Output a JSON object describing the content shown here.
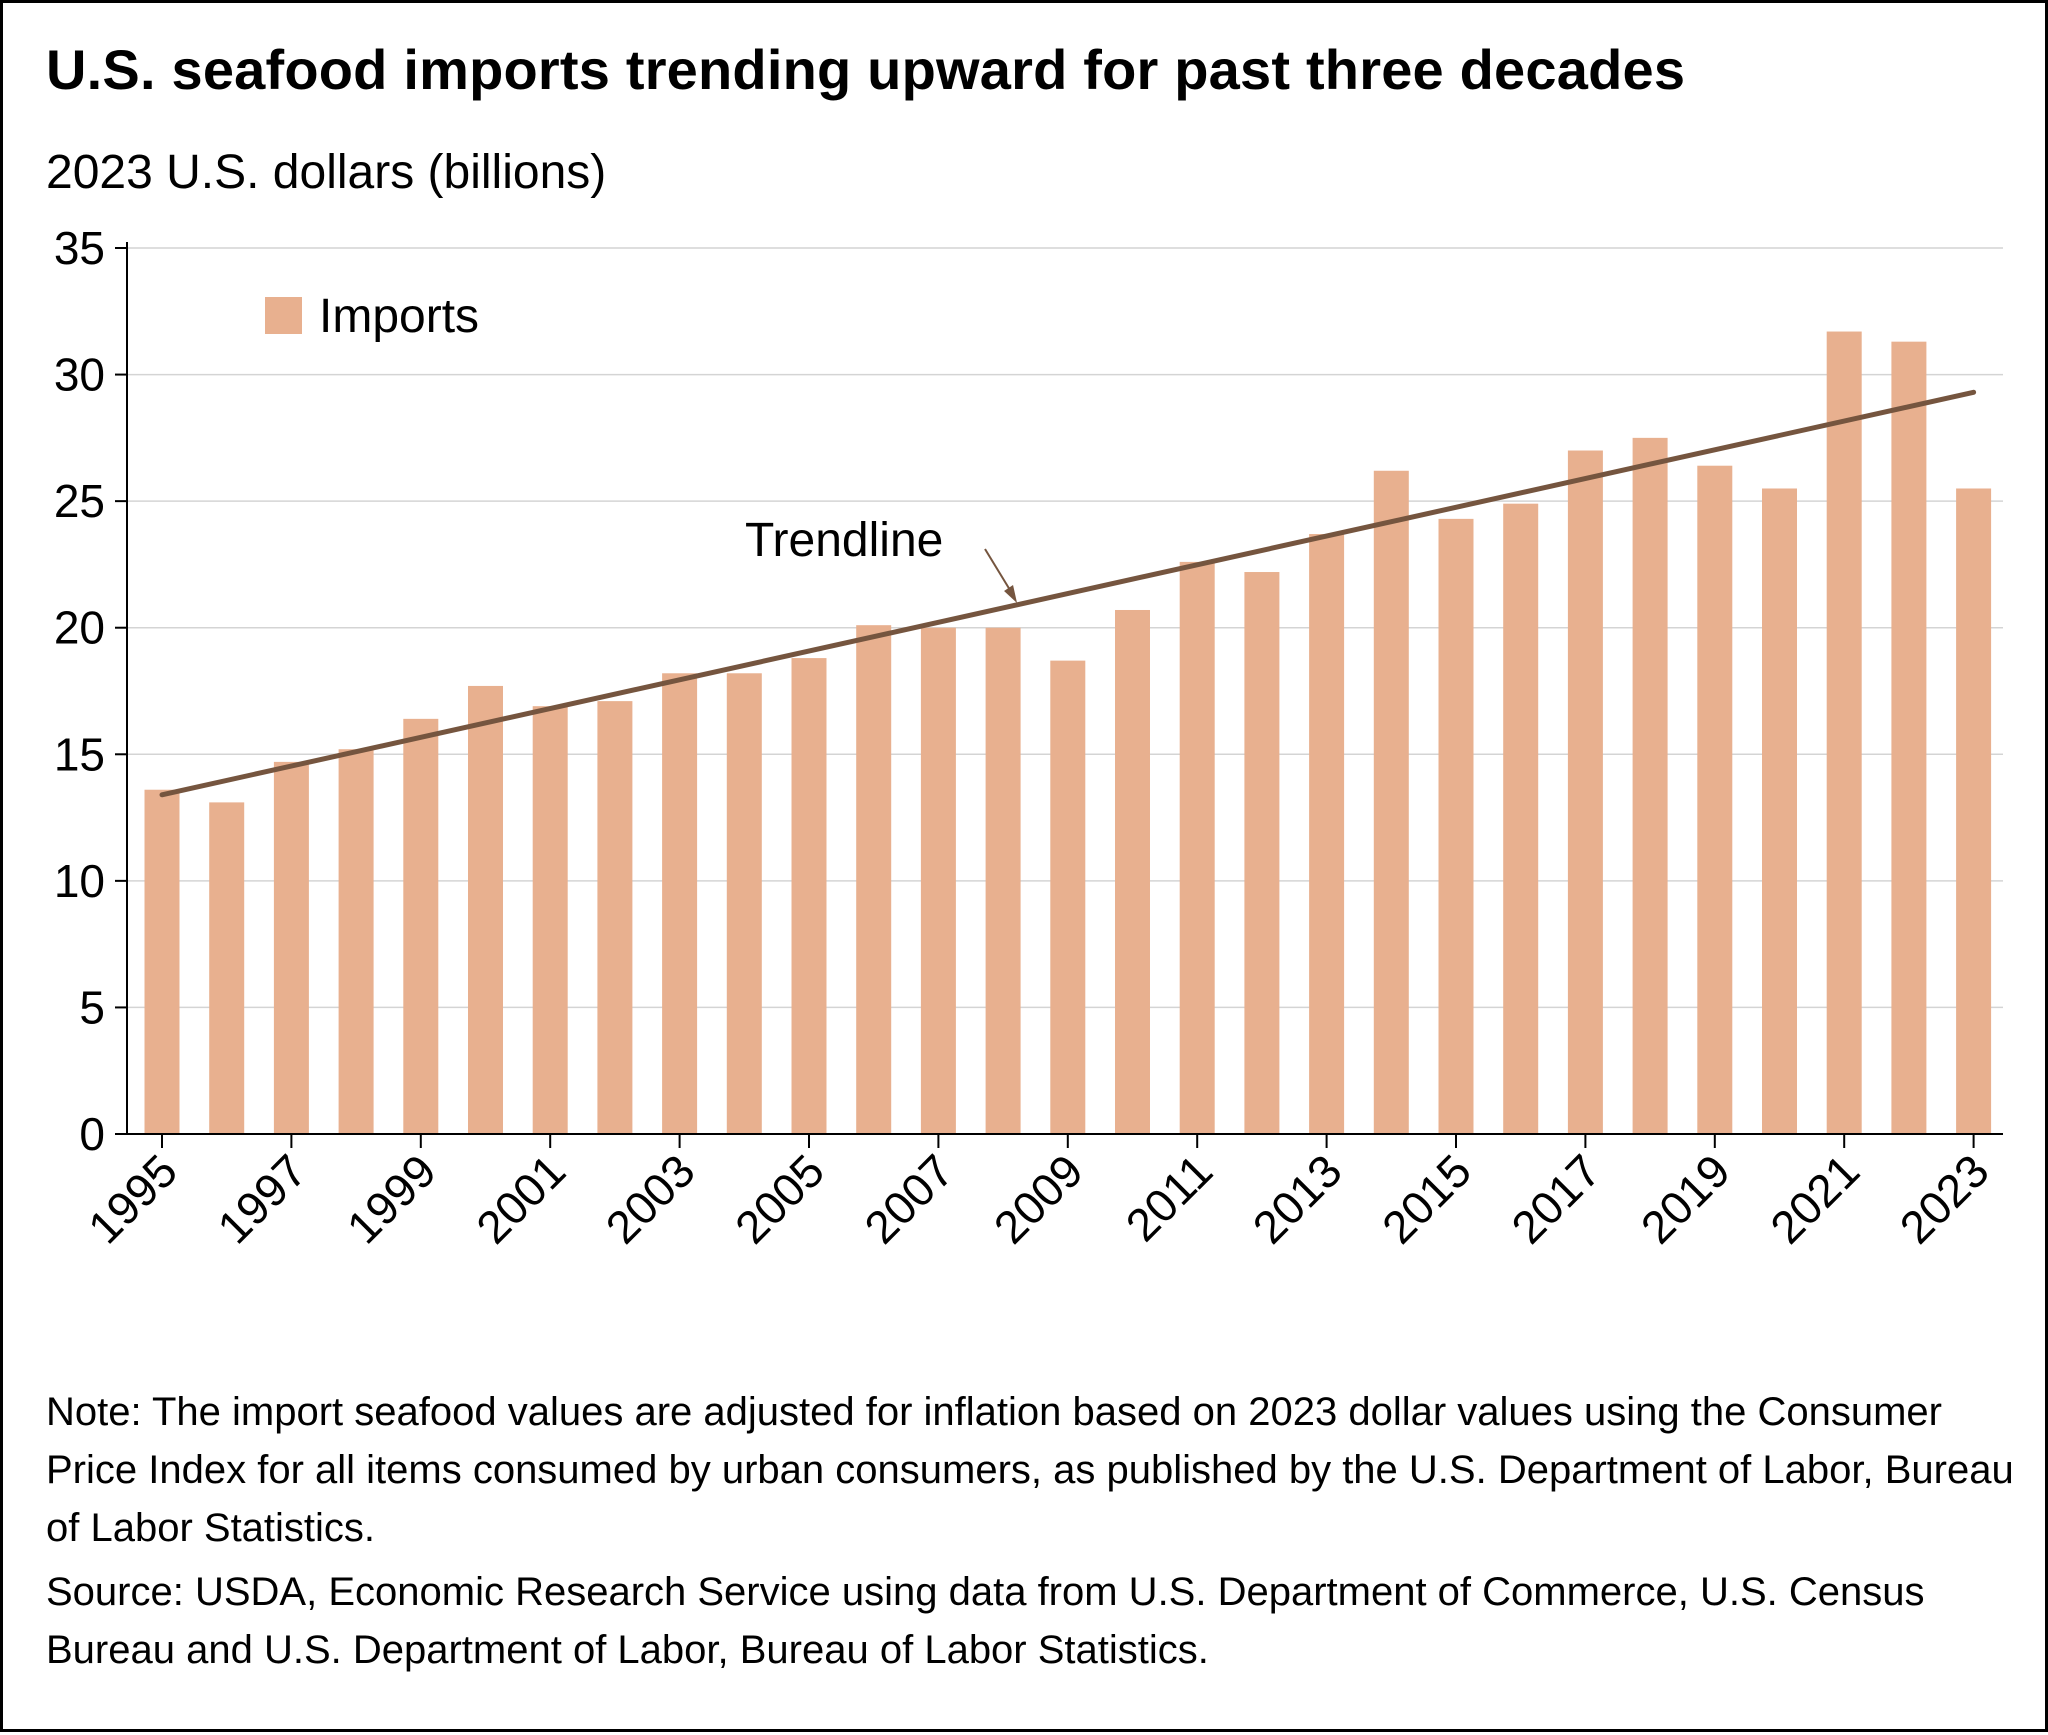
{
  "chart_data": {
    "type": "bar",
    "title": "U.S. seafood imports trending upward for past three decades",
    "ylabel": "2023 U.S. dollars (billions)",
    "xlabel": "",
    "ylim": [
      0,
      35
    ],
    "yticks": [
      "0",
      "5",
      "10",
      "15",
      "20",
      "25",
      "30",
      "35"
    ],
    "grid": true,
    "legend_position": "top-left",
    "categories": [
      "1995",
      "1996",
      "1997",
      "1998",
      "1999",
      "2000",
      "2001",
      "2002",
      "2003",
      "2004",
      "2005",
      "2006",
      "2007",
      "2008",
      "2009",
      "2010",
      "2011",
      "2012",
      "2013",
      "2014",
      "2015",
      "2016",
      "2017",
      "2018",
      "2019",
      "2020",
      "2021",
      "2022",
      "2023"
    ],
    "xtick_labels": [
      "1995",
      "1997",
      "1999",
      "2001",
      "2003",
      "2005",
      "2007",
      "2009",
      "2011",
      "2013",
      "2015",
      "2017",
      "2019",
      "2021",
      "2023"
    ],
    "series": [
      {
        "name": "Imports",
        "color": "#e8b08f",
        "values": [
          13.6,
          13.1,
          14.7,
          15.2,
          16.4,
          17.7,
          16.9,
          17.1,
          18.2,
          18.2,
          18.8,
          20.1,
          20.0,
          20.0,
          18.7,
          20.7,
          22.6,
          22.2,
          23.7,
          26.2,
          24.3,
          24.9,
          27.0,
          27.5,
          26.4,
          25.5,
          31.7,
          31.3,
          25.5
        ]
      }
    ],
    "trendline": {
      "label": "Trendline",
      "color": "#75553f",
      "start": {
        "x": "1995",
        "y": 13.4
      },
      "end": {
        "x": "2023",
        "y": 29.3
      }
    },
    "note": "Note: The import seafood values are adjusted for inflation based on 2023 dollar values using the Consumer Price Index for all items consumed by urban consumers, as published by the U.S. Department of Labor, Bureau of Labor Statistics.",
    "source": "Source: USDA, Economic Research Service using data from U.S. Department of Commerce, U.S. Census Bureau and U.S. Department of Labor, Bureau of Labor Statistics."
  }
}
